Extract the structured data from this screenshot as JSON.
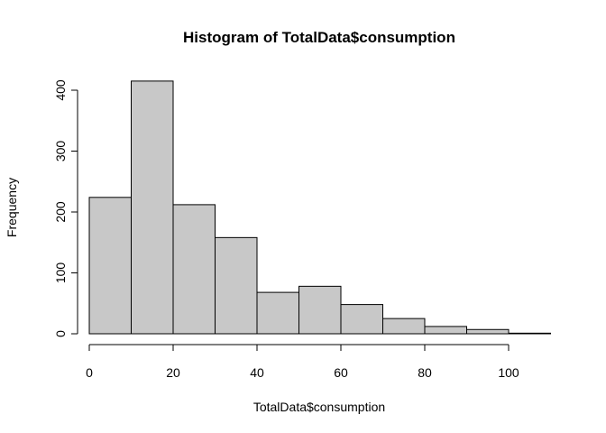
{
  "chart_data": {
    "type": "bar",
    "title": "Histogram of TotalData$consumption",
    "xlabel": "TotalData$consumption",
    "ylabel": "Frequency",
    "bins": [
      {
        "start": 0,
        "end": 10,
        "count": 224
      },
      {
        "start": 10,
        "end": 20,
        "count": 415
      },
      {
        "start": 20,
        "end": 30,
        "count": 212
      },
      {
        "start": 30,
        "end": 40,
        "count": 158
      },
      {
        "start": 40,
        "end": 50,
        "count": 68
      },
      {
        "start": 50,
        "end": 60,
        "count": 78
      },
      {
        "start": 60,
        "end": 70,
        "count": 48
      },
      {
        "start": 70,
        "end": 80,
        "count": 25
      },
      {
        "start": 80,
        "end": 90,
        "count": 12
      },
      {
        "start": 90,
        "end": 100,
        "count": 7
      },
      {
        "start": 100,
        "end": 110,
        "count": 1
      }
    ],
    "xlim": [
      0,
      110
    ],
    "ylim": [
      0,
      415
    ],
    "xticks": [
      0,
      20,
      40,
      60,
      80,
      100
    ],
    "yticks": [
      0,
      100,
      200,
      300,
      400
    ],
    "grid": false
  }
}
